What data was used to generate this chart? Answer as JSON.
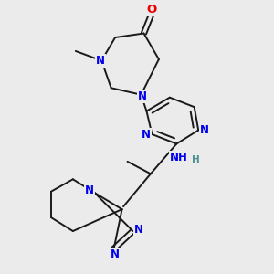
{
  "bg_color": "#ebebeb",
  "bond_color": "#1a1a1a",
  "N_color": "#0000ee",
  "O_color": "#ee0000",
  "H_color": "#4a9090",
  "line_width": 1.4,
  "font_size": 8.5,
  "figsize": [
    3.0,
    3.0
  ],
  "dpi": 100,
  "xlim": [
    0,
    10
  ],
  "ylim": [
    0,
    10
  ]
}
